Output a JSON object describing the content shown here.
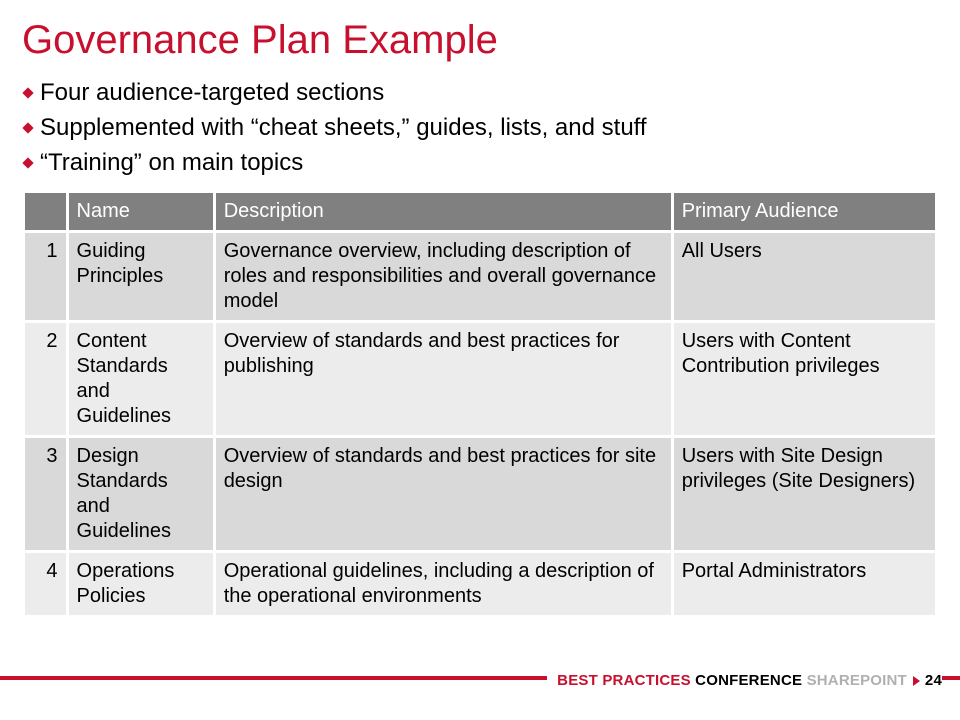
{
  "colors": {
    "accent": "#c8102e",
    "header_bg": "#808080",
    "row_odd": "#d9d9d9",
    "row_even": "#ececec",
    "sp_grey": "#b0b0b0",
    "text": "#000000",
    "white": "#ffffff"
  },
  "title": "Governance Plan Example",
  "bullets": [
    "Four audience-targeted sections",
    "Supplemented with “cheat sheets,” guides, lists, and stuff",
    "“Training” on main topics"
  ],
  "table": {
    "col_widths": [
      "4.5%",
      "16%",
      "50.5%",
      "29%"
    ],
    "header_fontsize": 20,
    "cell_fontsize": 20,
    "columns": [
      "",
      "Name",
      "Description",
      "Primary Audience"
    ],
    "rows": [
      {
        "num": "1",
        "name": "Guiding Principles",
        "desc": "Governance overview, including description of roles and responsibilities and overall governance model",
        "aud": "All Users"
      },
      {
        "num": "2",
        "name": "Content Standards and Guidelines",
        "desc": "Overview of standards and best practices for publishing",
        "aud": "Users with Content Contribution privileges"
      },
      {
        "num": "3",
        "name": "Design Standards and Guidelines",
        "desc": "Overview of standards and best practices for site design",
        "aud": "Users with Site Design privileges (Site Designers)"
      },
      {
        "num": "4",
        "name": "Operations Policies",
        "desc": "Operational guidelines, including a description of the operational environments",
        "aud": "Portal Administrators"
      }
    ]
  },
  "footer": {
    "best_practices": "BEST PRACTICES",
    "conference": " CONFERENCE",
    "sharepoint": "SHAREPOINT",
    "page": "24"
  }
}
